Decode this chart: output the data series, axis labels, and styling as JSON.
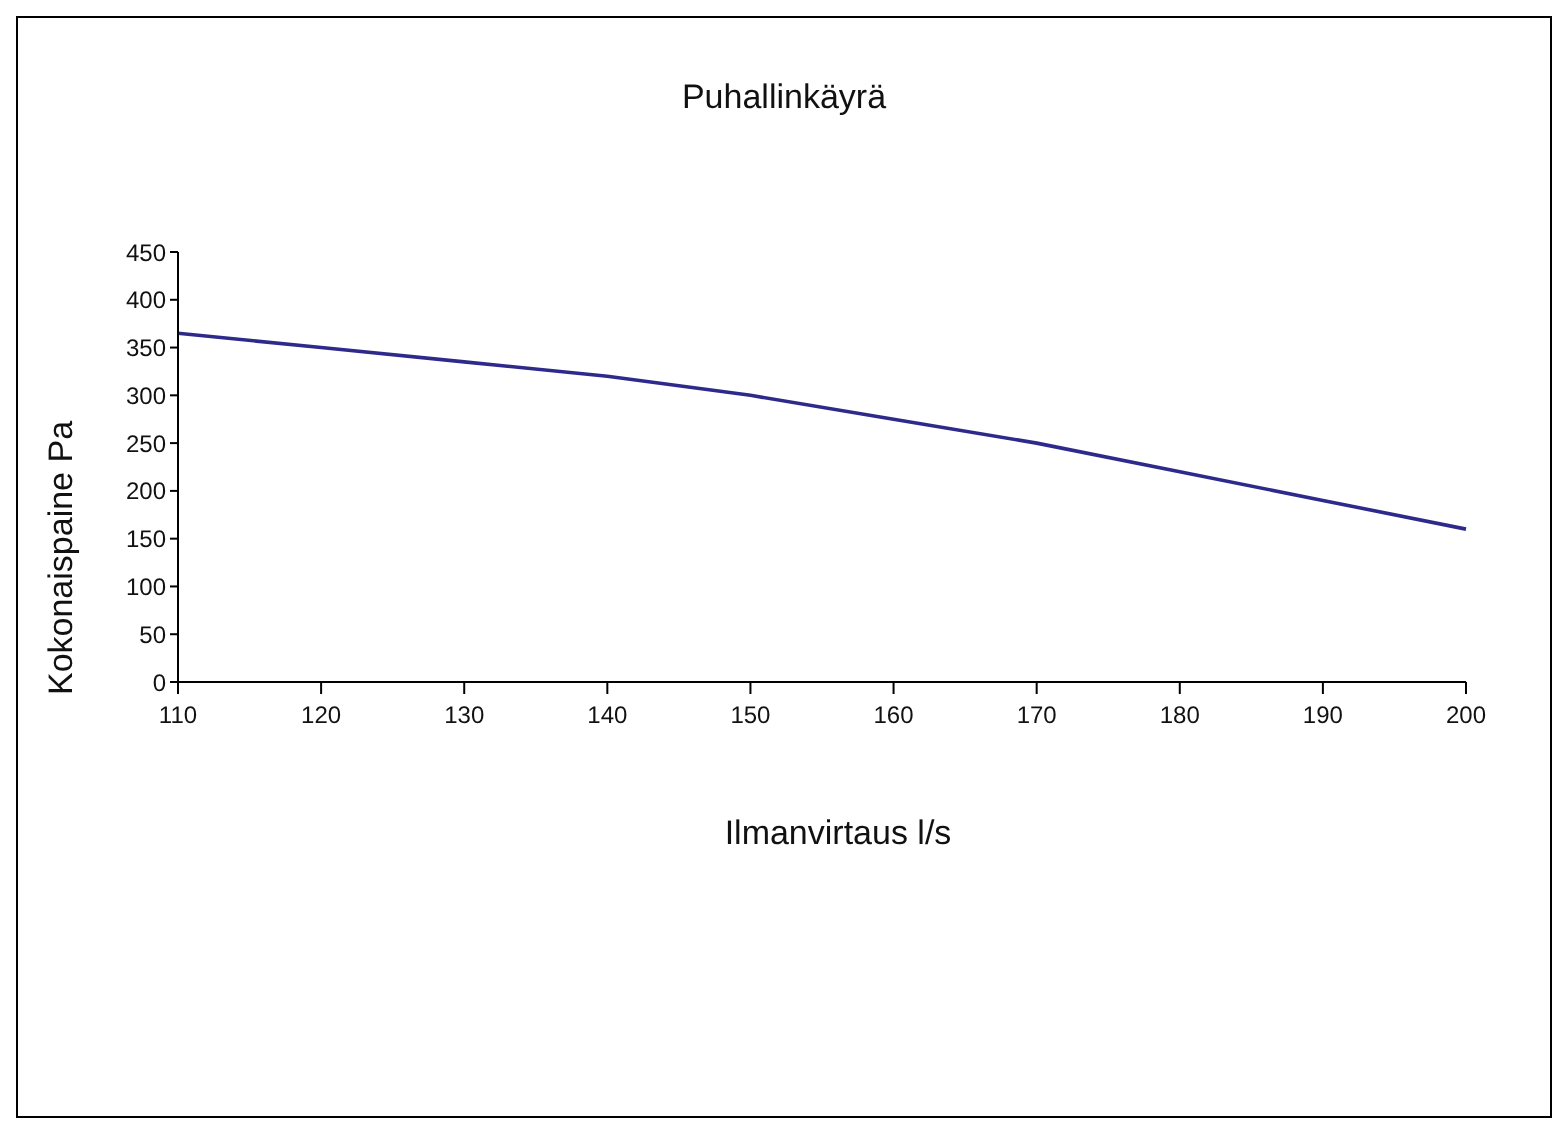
{
  "chart_data": {
    "type": "line",
    "title": "Puhallinkäyrä",
    "xlabel": "Ilmanvirtaus l/s",
    "ylabel": "Kokonaispaine Pa",
    "categories": [
      "110",
      "120",
      "130",
      "140",
      "150",
      "160",
      "170",
      "180",
      "190",
      "200"
    ],
    "series": [
      {
        "color": "#2e2a8c",
        "values": [
          365,
          350,
          335,
          320,
          300,
          275,
          250,
          220,
          190,
          160
        ]
      }
    ],
    "ylim": [
      0,
      450
    ],
    "yticks": [
      0,
      50,
      100,
      150,
      200,
      250,
      300,
      350,
      400,
      450
    ],
    "grid": false,
    "legend": false,
    "marker": "none",
    "line_style": "solid"
  }
}
